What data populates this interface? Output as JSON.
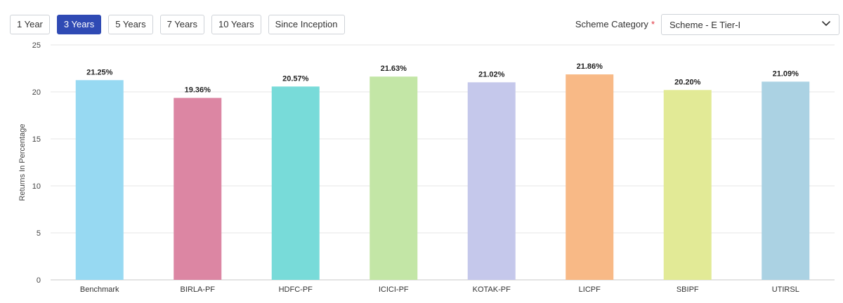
{
  "periods": [
    {
      "label": "1 Year",
      "active": false
    },
    {
      "label": "3 Years",
      "active": true
    },
    {
      "label": "5 Years",
      "active": false
    },
    {
      "label": "7 Years",
      "active": false
    },
    {
      "label": "10 Years",
      "active": false
    },
    {
      "label": "Since Inception",
      "active": false
    }
  ],
  "scheme": {
    "label": "Scheme Category",
    "required_mark": "*",
    "selected": "Scheme - E Tier-I",
    "icon": "chevron-down-icon"
  },
  "colors": {
    "active_button": "#2f4ab4",
    "required_star": "#e0323c"
  },
  "chart_data": {
    "type": "bar",
    "ylabel": "Returns In Percentage",
    "ylim": [
      0,
      25
    ],
    "yticks": [
      0,
      5,
      10,
      15,
      20,
      25
    ],
    "grid": true,
    "categories": [
      "Benchmark",
      "BIRLA-PF",
      "HDFC-PF",
      "ICICI-PF",
      "KOTAK-PF",
      "LICPF",
      "SBIPF",
      "UTIRSL"
    ],
    "values": [
      21.25,
      19.36,
      20.57,
      21.63,
      21.02,
      21.86,
      20.2,
      21.09
    ],
    "data_labels": [
      "21.25%",
      "19.36%",
      "20.57%",
      "21.63%",
      "21.02%",
      "21.86%",
      "20.20%",
      "21.09%"
    ],
    "colors": [
      "#97d9f2",
      "#dc86a3",
      "#78dbd9",
      "#c3e6a6",
      "#c5c8eb",
      "#f8b986",
      "#e2ea96",
      "#abd2e3"
    ]
  }
}
